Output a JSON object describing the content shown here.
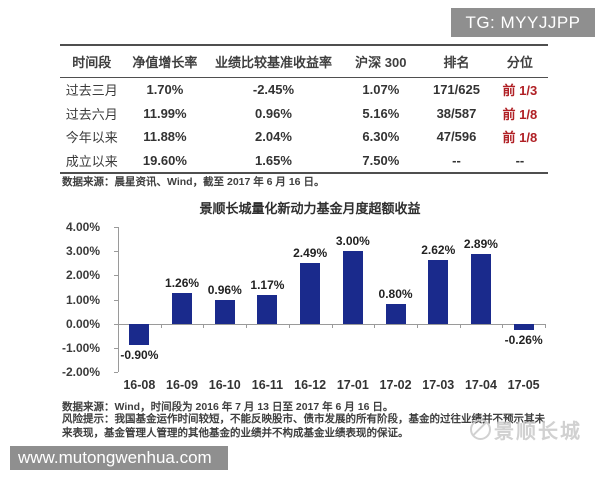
{
  "header": {
    "tg_badge": "TG: MYYJJPP"
  },
  "table": {
    "columns": [
      "时间段",
      "净值增长率",
      "业绩比较基准收益率",
      "沪深 300",
      "排名",
      "分位"
    ],
    "rows": [
      {
        "period": "过去三月",
        "nav_growth": "1.70%",
        "benchmark": "-2.45%",
        "hs300": "1.07%",
        "rank": "171/625",
        "percentile": "前 1/3",
        "percentile_red": true
      },
      {
        "period": "过去六月",
        "nav_growth": "11.99%",
        "benchmark": "0.96%",
        "hs300": "5.16%",
        "rank": "38/587",
        "percentile": "前 1/8",
        "percentile_red": true
      },
      {
        "period": "今年以来",
        "nav_growth": "11.88%",
        "benchmark": "2.04%",
        "hs300": "6.30%",
        "rank": "47/596",
        "percentile": "前 1/8",
        "percentile_red": true
      },
      {
        "period": "成立以来",
        "nav_growth": "19.60%",
        "benchmark": "1.65%",
        "hs300": "7.50%",
        "rank": "--",
        "percentile": "--",
        "percentile_red": false
      }
    ],
    "source_note": "数据来源：晨星资讯、Wind，截至 2017 年 6 月 16 日。"
  },
  "chart_data": {
    "type": "bar",
    "title": "景顺长城量化新动力基金月度超额收益",
    "categories": [
      "16-08",
      "16-09",
      "16-10",
      "16-11",
      "16-12",
      "17-01",
      "17-02",
      "17-03",
      "17-04",
      "17-05"
    ],
    "values": [
      -0.9,
      1.26,
      0.96,
      1.17,
      2.49,
      3.0,
      0.8,
      2.62,
      2.89,
      -0.26
    ],
    "value_labels": [
      "-0.90%",
      "1.26%",
      "0.96%",
      "1.17%",
      "2.49%",
      "3.00%",
      "0.80%",
      "2.62%",
      "2.89%",
      "-0.26%"
    ],
    "xlabel": "",
    "ylabel": "",
    "ylim": [
      -2,
      4
    ],
    "ytick_step": 1,
    "ytick_labels": [
      "4.00%",
      "3.00%",
      "2.00%",
      "1.00%",
      "0.00%",
      "-1.00%",
      "-2.00%"
    ],
    "grid": false,
    "legend_position": "none",
    "bar_color": "#1a2a8c"
  },
  "footer": {
    "source_note": "数据来源：Wind，时间段为 2016 年 7 月 13 日至 2017 年 6 月 16 日。",
    "risk_note": "风险提示：我国基金运作时间较短，不能反映股市、债市发展的所有阶段，基金的过往业绩并不预示其未来表现，基金管理人管理的其他基金的业绩并不构成基金业绩表现的保证。",
    "brand_watermark": "景顺长城",
    "site_watermark": "www.mutongwenhua.com"
  },
  "colors": {
    "accent_red": "#b02025",
    "bar_navy": "#1a2a8c",
    "badge_gray": "#8f8f8f"
  }
}
